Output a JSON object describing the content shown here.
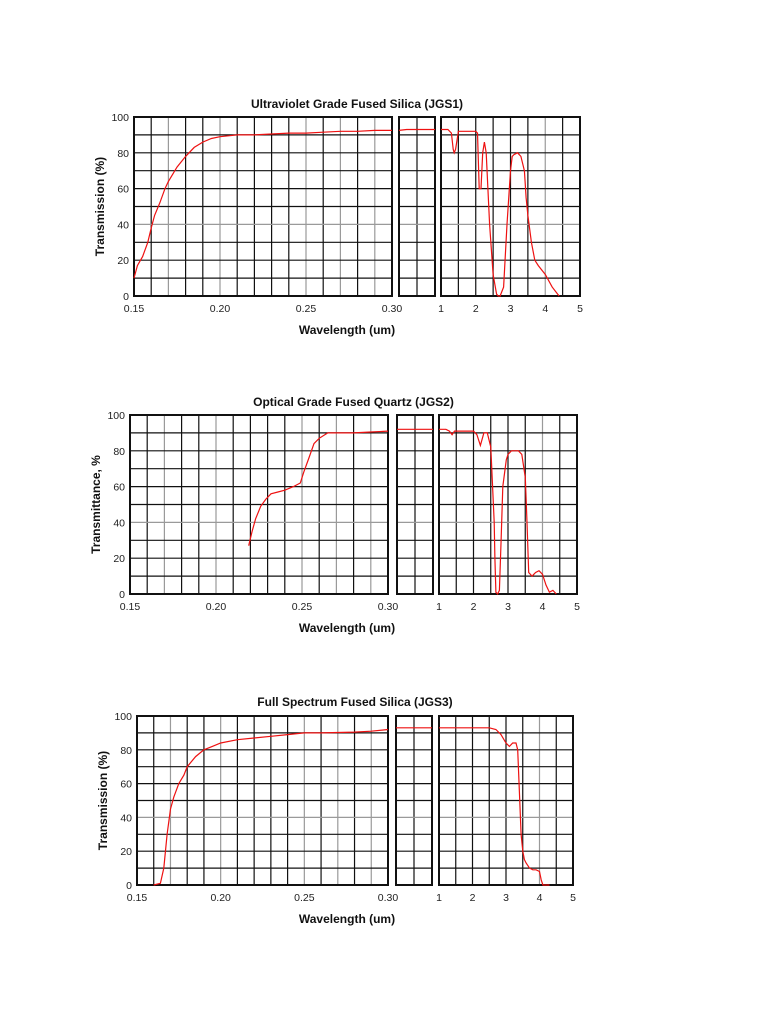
{
  "chart_data": [
    {
      "type": "line",
      "title": "Ultraviolet Grade Fused Silica (JGS1)",
      "xlabel": "Wavelength (um)",
      "ylabel": "Transmission (%)",
      "ylim": [
        0,
        100
      ],
      "yticks": [
        "0",
        "20",
        "40",
        "60",
        "80",
        "100"
      ],
      "grid": true,
      "panels": [
        {
          "xlim": [
            0.15,
            0.3
          ],
          "xticks": [
            "0.15",
            "0.20",
            "0.25",
            "0.30"
          ],
          "x": [
            0.15,
            0.152,
            0.155,
            0.158,
            0.16,
            0.162,
            0.165,
            0.168,
            0.17,
            0.175,
            0.18,
            0.185,
            0.19,
            0.195,
            0.2,
            0.205,
            0.21,
            0.22,
            0.23,
            0.24,
            0.25,
            0.26,
            0.27,
            0.28,
            0.29,
            0.3
          ],
          "y": [
            10,
            17,
            22,
            30,
            38,
            45,
            52,
            60,
            64,
            72,
            78,
            83,
            86,
            88,
            89,
            89.5,
            90,
            90,
            90.5,
            91,
            91,
            91.5,
            92,
            92,
            92.5,
            92.5
          ]
        },
        {
          "xlim": [
            0.3,
            1.0
          ],
          "xticks": [],
          "x": [
            0.3,
            0.45,
            0.6,
            0.8,
            1.0
          ],
          "y": [
            92.5,
            93,
            93,
            93,
            93
          ]
        },
        {
          "xlim": [
            1,
            5
          ],
          "xticks": [
            "1",
            "2",
            "3",
            "4",
            "5"
          ],
          "x": [
            1.0,
            1.2,
            1.3,
            1.35,
            1.38,
            1.42,
            1.5,
            2.0,
            2.05,
            2.1,
            2.15,
            2.2,
            2.25,
            2.3,
            2.35,
            2.4,
            2.5,
            2.6,
            2.65,
            2.7,
            2.8,
            2.9,
            3.0,
            3.05,
            3.1,
            3.2,
            3.3,
            3.4,
            3.45,
            3.5,
            3.6,
            3.7,
            3.8,
            4.0,
            4.2,
            4.4
          ],
          "y": [
            93,
            93,
            91,
            82,
            80,
            82,
            92,
            92,
            91,
            60,
            60,
            80,
            86,
            80,
            60,
            40,
            12,
            1,
            0,
            0,
            5,
            40,
            70,
            78,
            79,
            80,
            78,
            70,
            55,
            45,
            30,
            20,
            17,
            12,
            5,
            0
          ]
        }
      ]
    },
    {
      "type": "line",
      "title": "Optical Grade Fused Quartz  (JGS2)",
      "xlabel": "Wavelength (um)",
      "ylabel": "Transmittance, %",
      "ylim": [
        0,
        100
      ],
      "yticks": [
        "0",
        "20",
        "40",
        "60",
        "80",
        "100"
      ],
      "grid": true,
      "panels": [
        {
          "xlim": [
            0.15,
            0.3
          ],
          "xticks": [
            "0.15",
            "0.20",
            "0.25",
            "0.30"
          ],
          "x": [
            0.219,
            0.221,
            0.223,
            0.226,
            0.229,
            0.232,
            0.236,
            0.24,
            0.245,
            0.249,
            0.251,
            0.254,
            0.257,
            0.26,
            0.265,
            0.27,
            0.28,
            0.29,
            0.3
          ],
          "y": [
            27,
            35,
            42,
            49,
            53,
            56,
            57,
            58,
            60,
            62,
            68,
            76,
            84,
            87,
            90,
            90,
            90,
            90.5,
            91
          ]
        },
        {
          "xlim": [
            0.3,
            1.0
          ],
          "xticks": [],
          "x": [
            0.3,
            0.6,
            1.0
          ],
          "y": [
            92,
            92,
            92
          ]
        },
        {
          "xlim": [
            1,
            5
          ],
          "xticks": [
            "1",
            "2",
            "3",
            "4",
            "5"
          ],
          "x": [
            1.0,
            1.2,
            1.3,
            1.38,
            1.45,
            1.6,
            2.0,
            2.1,
            2.2,
            2.3,
            2.4,
            2.5,
            2.6,
            2.62,
            2.65,
            2.7,
            2.75,
            2.8,
            2.85,
            2.95,
            3.0,
            3.1,
            3.3,
            3.4,
            3.5,
            3.55,
            3.6,
            3.7,
            3.8,
            3.9,
            4.0,
            4.1,
            4.2,
            4.3,
            4.4
          ],
          "y": [
            92,
            92,
            91,
            89,
            91,
            91,
            91,
            89,
            83,
            90,
            90,
            82,
            40,
            20,
            1,
            0,
            2,
            30,
            60,
            75,
            78,
            80,
            80,
            78,
            65,
            40,
            12,
            10,
            12,
            13,
            11,
            5,
            1,
            2,
            0
          ]
        }
      ]
    },
    {
      "type": "line",
      "title": "Full Spectrum Fused Silica (JGS3)",
      "xlabel": "Wavelength (um)",
      "ylabel": "Transmission (%)",
      "ylim": [
        0,
        100
      ],
      "yticks": [
        "0",
        "20",
        "40",
        "60",
        "80",
        "100"
      ],
      "grid": true,
      "panels": [
        {
          "xlim": [
            0.15,
            0.3
          ],
          "xticks": [
            "0.15",
            "0.20",
            "0.25",
            "0.30"
          ],
          "x": [
            0.16,
            0.164,
            0.166,
            0.168,
            0.17,
            0.172,
            0.175,
            0.178,
            0.18,
            0.185,
            0.19,
            0.195,
            0.2,
            0.21,
            0.22,
            0.23,
            0.24,
            0.25,
            0.26,
            0.28,
            0.29,
            0.3
          ],
          "y": [
            0,
            1,
            10,
            30,
            45,
            52,
            60,
            65,
            70,
            76,
            80,
            82,
            84,
            86,
            87,
            88,
            89,
            90,
            90,
            90.5,
            91,
            92
          ]
        },
        {
          "xlim": [
            0.3,
            1.0
          ],
          "xticks": [],
          "x": [
            0.3,
            0.6,
            1.0
          ],
          "y": [
            93,
            93,
            93
          ]
        },
        {
          "xlim": [
            1,
            5
          ],
          "xticks": [
            "1",
            "2",
            "3",
            "4",
            "5"
          ],
          "x": [
            1.0,
            2.0,
            2.5,
            2.7,
            2.85,
            3.0,
            3.1,
            3.2,
            3.3,
            3.35,
            3.4,
            3.45,
            3.5,
            3.55,
            3.6,
            3.7,
            3.8,
            3.9,
            4.0,
            4.05,
            4.1,
            4.2,
            4.3
          ],
          "y": [
            93,
            93,
            93,
            92,
            89,
            84,
            82,
            84,
            84,
            80,
            55,
            30,
            20,
            15,
            13,
            10,
            9,
            9,
            8,
            3,
            0,
            0,
            0
          ]
        }
      ]
    }
  ]
}
